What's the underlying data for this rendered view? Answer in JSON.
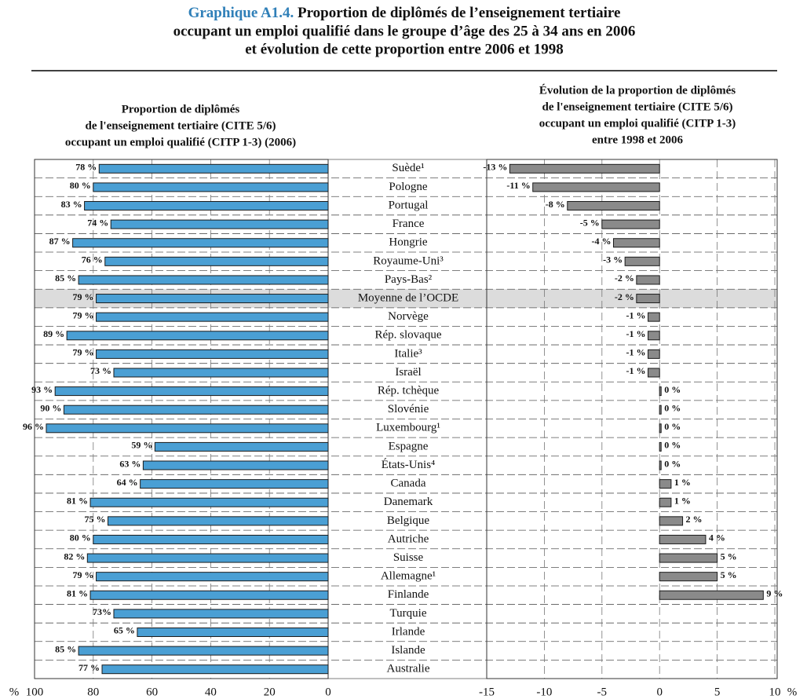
{
  "figure_label": "Graphique A1.4.",
  "title": [
    "Proportion de diplômés de l’enseignement tertiaire",
    "occupant un emploi qualifié dans le groupe d’âge des 25 à 34 ans en 2006",
    "et évolution de cette proportion entre 2006 et 1998"
  ],
  "chart_data": [
    {
      "type": "barh",
      "title": [
        "Proportion de diplômés",
        "de l'enseignement tertiaire (CITE 5/6)",
        "occupant un emploi qualifié (CITP 1-3) (2006)"
      ],
      "categories": [
        "Suède¹",
        "Pologne",
        "Portugal",
        "France",
        "Hongrie",
        "Royaume-Uni³",
        "Pays-Bas²",
        "Moyenne de l’OCDE",
        "Norvège",
        "Rép. slovaque",
        "Italie³",
        "Israël",
        "Rép. tchèque",
        "Slovénie",
        "Luxembourg¹",
        "Espagne",
        "États-Unis⁴",
        "Canada",
        "Danemark",
        "Belgique",
        "Autriche",
        "Suisse",
        "Allemagne¹",
        "Finlande",
        "Turquie",
        "Irlande",
        "Islande",
        "Australie"
      ],
      "highlight": "Moyenne de l’OCDE",
      "values": [
        78,
        80,
        83,
        74,
        87,
        76,
        85,
        79,
        79,
        89,
        79,
        73,
        93,
        90,
        96,
        59,
        63,
        64,
        81,
        75,
        80,
        82,
        79,
        81,
        73,
        65,
        85,
        77
      ],
      "value_labels": [
        "78 %",
        "80 %",
        "83 %",
        "74 %",
        "87 %",
        "76 %",
        "85 %",
        "79 %",
        "79 %",
        "89 %",
        "79 %",
        "73 %",
        "93 %",
        "90 %",
        "96 %",
        "59 %",
        "63 %",
        "64 %",
        "81 %",
        "75 %",
        "80 %",
        "82 %",
        "79 %",
        "81 %",
        "73%",
        "65 %",
        "85 %",
        "77 %"
      ],
      "color": "#4a9fd4",
      "xlabel": "%",
      "xlim": [
        100,
        0
      ],
      "xticks": [
        100,
        80,
        60,
        40,
        20,
        0
      ],
      "grid": true
    },
    {
      "type": "barh",
      "title": [
        "Évolution de la proportion de diplômés",
        "de l'enseignement tertiaire (CITE 5/6)",
        "occupant un emploi qualifié (CITP 1-3)",
        "entre 1998 et 2006"
      ],
      "values": [
        -13,
        -11,
        -8,
        -5,
        -4,
        -3,
        -2,
        -2,
        -1,
        -1,
        -1,
        -1,
        0,
        0,
        0,
        0,
        0,
        1,
        1,
        2,
        4,
        5,
        5,
        9,
        null,
        null,
        null,
        null
      ],
      "value_labels": [
        "-13 %",
        "-11 %",
        "-8 %",
        "-5 %",
        "-4 %",
        "-3 %",
        "-2 %",
        "-2 %",
        "-1 %",
        "-1 %",
        "-1 %",
        "-1 %",
        "0 %",
        "0 %",
        "0 %",
        "0 %",
        "0 %",
        "1 %",
        "1 %",
        "2 %",
        "4 %",
        "5 %",
        "5 %",
        "9 %",
        null,
        null,
        null,
        null
      ],
      "color": "#8a8a8a",
      "xlabel": "%",
      "xlim": [
        -15,
        10
      ],
      "xticks": [
        -15,
        -10,
        -5,
        0,
        5,
        10
      ],
      "grid": true
    }
  ]
}
